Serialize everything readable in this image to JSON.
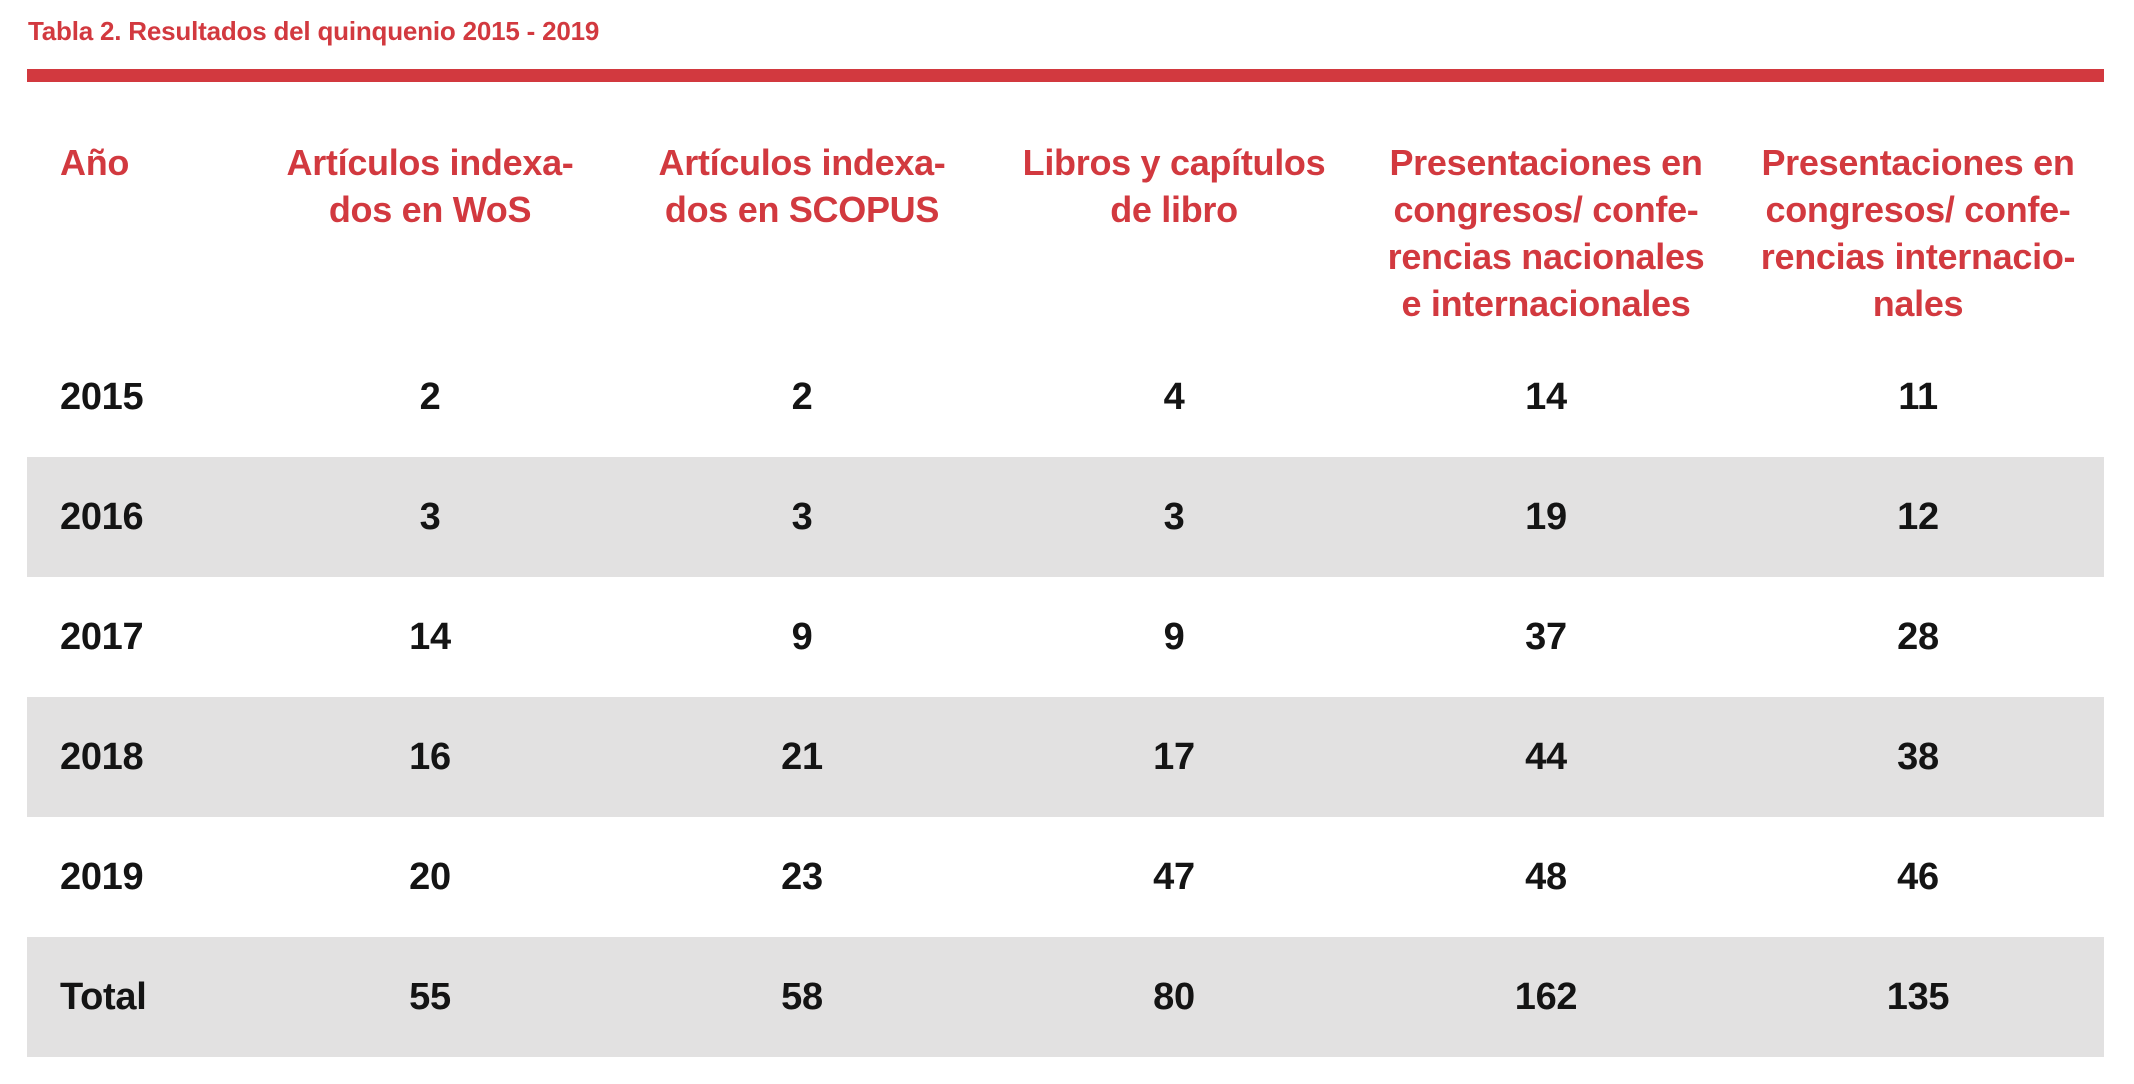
{
  "page": {
    "title": "Tabla 2. Resultados del quinquenio 2015 - 2019"
  },
  "colors": {
    "accent_red": "#d2393f",
    "row_alt_gray": "#e2e1e1",
    "text_black": "#141414"
  },
  "table": {
    "columns": [
      {
        "label": "Año"
      },
      {
        "label": "Artículos indexa-\ndos en WoS"
      },
      {
        "label": "Artículos indexa-\ndos en SCOPUS"
      },
      {
        "label": "Libros y capítulos\nde libro"
      },
      {
        "label": "Presentaciones en\ncongresos/ confe-\nrencias nacionales\ne internacionales"
      },
      {
        "label": "Presentaciones en\ncongresos/ confe-\nrencias internacio-\nnales"
      }
    ],
    "rows": [
      {
        "label": "2015",
        "values": [
          "2",
          "2",
          "4",
          "14",
          "11"
        ]
      },
      {
        "label": "2016",
        "values": [
          "3",
          "3",
          "3",
          "19",
          "12"
        ]
      },
      {
        "label": "2017",
        "values": [
          "14",
          "9",
          "9",
          "37",
          "28"
        ]
      },
      {
        "label": "2018",
        "values": [
          "16",
          "21",
          "17",
          "44",
          "38"
        ]
      },
      {
        "label": "2019",
        "values": [
          "20",
          "23",
          "47",
          "48",
          "46"
        ]
      },
      {
        "label": "Total",
        "values": [
          "55",
          "58",
          "80",
          "162",
          "135"
        ]
      }
    ]
  }
}
